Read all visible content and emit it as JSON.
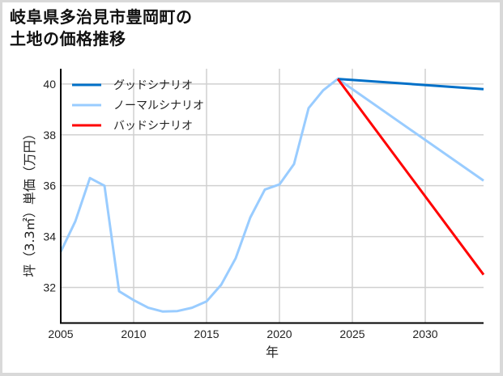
{
  "title_line1": "岐阜県多治見市豊岡町の",
  "title_line2": "土地の価格推移",
  "chart_data": {
    "type": "line",
    "title": "岐阜県多治見市豊岡町の土地の価格推移",
    "xlabel": "年",
    "ylabel": "坪（3.3㎡）単価（万円）",
    "xlim": [
      2005,
      2034
    ],
    "ylim": [
      30.6,
      40.6
    ],
    "xticks": [
      2005,
      2010,
      2015,
      2020,
      2025,
      2030
    ],
    "yticks": [
      32,
      34,
      36,
      38,
      40
    ],
    "grid": true,
    "legend_position": "upper left",
    "series": [
      {
        "name": "グッドシナリオ",
        "color": "#0070c8",
        "x": [
          2024,
          2034
        ],
        "values": [
          40.2,
          39.8
        ]
      },
      {
        "name": "ノーマルシナリオ",
        "color": "#99ccff",
        "x": [
          2005,
          2006,
          2007,
          2008,
          2009,
          2010,
          2011,
          2012,
          2013,
          2014,
          2015,
          2016,
          2017,
          2018,
          2019,
          2020,
          2021,
          2022,
          2023,
          2024,
          2034
        ],
        "values": [
          33.4,
          34.6,
          36.3,
          36.0,
          31.85,
          31.5,
          31.2,
          31.05,
          31.07,
          31.2,
          31.45,
          32.1,
          33.15,
          34.75,
          35.85,
          36.05,
          36.85,
          39.05,
          39.75,
          40.2,
          36.2
        ]
      },
      {
        "name": "バッドシナリオ",
        "color": "#ff0000",
        "x": [
          2024,
          2034
        ],
        "values": [
          40.2,
          32.5
        ]
      }
    ]
  },
  "legend": [
    {
      "label": "グッドシナリオ",
      "color": "#0070c8"
    },
    {
      "label": "ノーマルシナリオ",
      "color": "#99ccff"
    },
    {
      "label": "バッドシナリオ",
      "color": "#ff0000"
    }
  ],
  "axis": {
    "x_label": "年",
    "y_label": "坪（3.3㎡）単価（万円）",
    "x_ticks": [
      "2005",
      "2010",
      "2015",
      "2020",
      "2025",
      "2030"
    ],
    "y_ticks": [
      "32",
      "34",
      "36",
      "38",
      "40"
    ]
  }
}
